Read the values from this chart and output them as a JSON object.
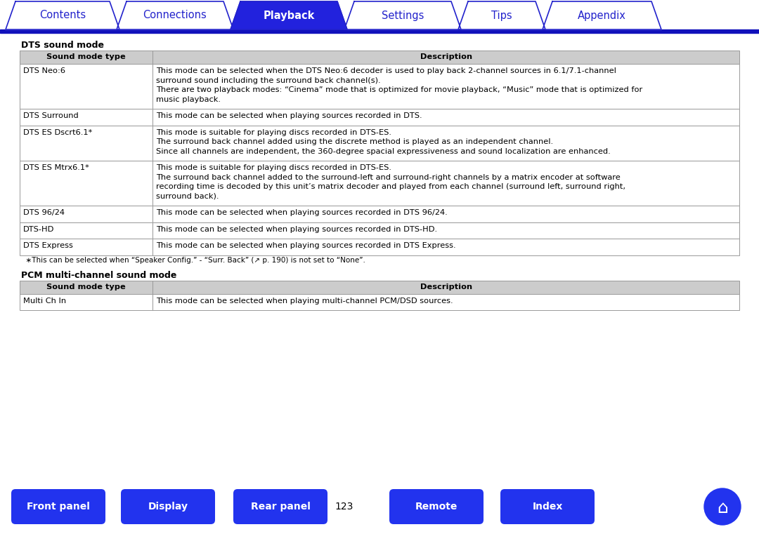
{
  "bg_color": "#ffffff",
  "tab_items": [
    "Contents",
    "Connections",
    "Playback",
    "Settings",
    "Tips",
    "Appendix"
  ],
  "tab_active": "Playback",
  "tab_text_color": "#2222cc",
  "tab_active_text_color": "#ffffff",
  "tab_active_bg": "#2222dd",
  "tab_border_color": "#2222cc",
  "tab_line_color": "#1111bb",
  "section1_title": "DTS sound mode",
  "table1_header": [
    "Sound mode type",
    "Description"
  ],
  "table1_rows": [
    [
      "DTS Neo:6",
      "This mode can be selected when the DTS Neo:6 decoder is used to play back 2-channel sources in 6.1/7.1-channel\nsurround sound including the surround back channel(s).\nThere are two playback modes: “Cinema” mode that is optimized for movie playback, “Music” mode that is optimized for\nmusic playback."
    ],
    [
      "DTS Surround",
      "This mode can be selected when playing sources recorded in DTS."
    ],
    [
      "DTS ES Dscrt6.1*",
      "This mode is suitable for playing discs recorded in DTS-ES.\nThe surround back channel added using the discrete method is played as an independent channel.\nSince all channels are independent, the 360-degree spacial expressiveness and sound localization are enhanced."
    ],
    [
      "DTS ES Mtrx6.1*",
      "This mode is suitable for playing discs recorded in DTS-ES.\nThe surround back channel added to the surround-left and surround-right channels by a matrix encoder at software\nrecording time is decoded by this unit’s matrix decoder and played from each channel (surround left, surround right,\nsurround back)."
    ],
    [
      "DTS 96/24",
      "This mode can be selected when playing sources recorded in DTS 96/24."
    ],
    [
      "DTS-HD",
      "This mode can be selected when playing sources recorded in DTS-HD."
    ],
    [
      "DTS Express",
      "This mode can be selected when playing sources recorded in DTS Express."
    ]
  ],
  "footnote": "  ∗This can be selected when “Speaker Config.” - “Surr. Back” (↗ p. 190) is not set to “None”.",
  "section2_title": "PCM multi-channel sound mode",
  "table2_header": [
    "Sound mode type",
    "Description"
  ],
  "table2_rows": [
    [
      "Multi Ch In",
      "This mode can be selected when playing multi-channel PCM/DSD sources."
    ]
  ],
  "bottom_buttons": [
    "Front panel",
    "Display",
    "Rear panel",
    "Remote",
    "Index"
  ],
  "page_number": "123",
  "btn_color": "#2233ee",
  "btn_text_color": "#ffffff",
  "header_gray": "#cccccc",
  "row_white": "#ffffff",
  "border_color": "#999999",
  "text_color": "#000000",
  "title_color": "#000000"
}
